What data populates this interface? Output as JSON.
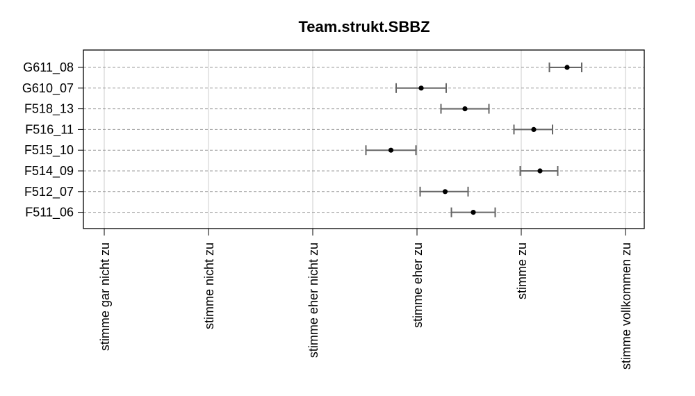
{
  "chart_data": {
    "type": "scatter",
    "title": "Team.strukt.SBBZ",
    "xlabel": "",
    "ylabel": "",
    "xlim": [
      1,
      6
    ],
    "x_ticks": [
      {
        "value": 1,
        "label": "stimme gar nicht zu"
      },
      {
        "value": 2,
        "label": "stimme nicht zu"
      },
      {
        "value": 3,
        "label": "stimme eher nicht zu"
      },
      {
        "value": 4,
        "label": "stimme eher zu"
      },
      {
        "value": 5,
        "label": "stimme zu"
      },
      {
        "value": 6,
        "label": "stimme vollkommen zu"
      }
    ],
    "categories": [
      "G611_08",
      "G610_07",
      "F518_13",
      "F516_11",
      "F515_10",
      "F514_09",
      "F512_07",
      "F511_06"
    ],
    "means": [
      5.44,
      4.04,
      4.46,
      5.12,
      3.75,
      5.18,
      4.27,
      4.54
    ],
    "lower": [
      5.27,
      3.8,
      4.23,
      4.93,
      3.51,
      4.99,
      4.03,
      4.33
    ],
    "upper": [
      5.58,
      4.28,
      4.69,
      5.3,
      3.99,
      5.35,
      4.49,
      4.75
    ],
    "grid": true,
    "legend": "none",
    "colors": {
      "point": "#000000",
      "errorbar": "#666666",
      "guide": "#999999",
      "grid": "#cccccc"
    }
  }
}
